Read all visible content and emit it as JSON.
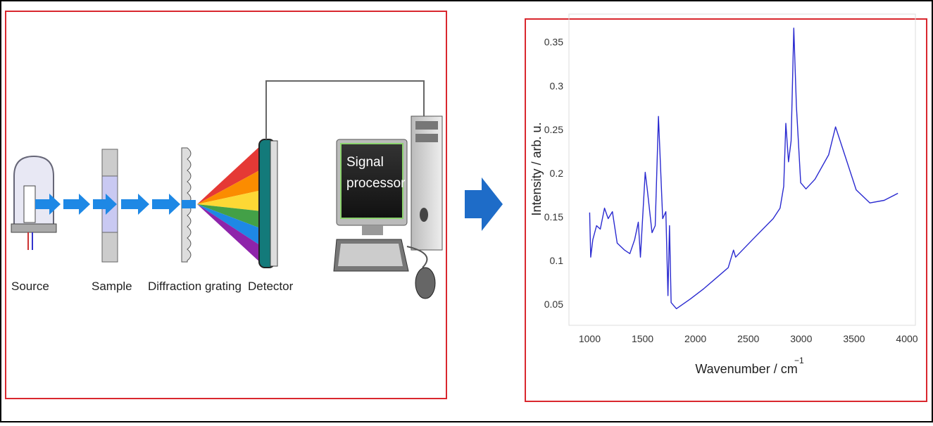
{
  "diagram": {
    "labels": [
      "Source",
      "Sample",
      "Diffraction grating",
      "Detector"
    ],
    "screen_text": [
      "Signal",
      "processor"
    ]
  },
  "chart_data": {
    "type": "line",
    "y_label": "Intensity / arb. u.",
    "x_label": "Wavenumber / cm",
    "x_label_exponent": "−1",
    "x": [
      1000,
      1010,
      1030,
      1065,
      1100,
      1140,
      1175,
      1215,
      1260,
      1330,
      1380,
      1425,
      1460,
      1480,
      1525,
      1545,
      1590,
      1620,
      1650,
      1690,
      1720,
      1740,
      1755,
      1770,
      1820,
      1950,
      2080,
      2310,
      2360,
      2380,
      2540,
      2735,
      2800,
      2835,
      2855,
      2880,
      2905,
      2930,
      2955,
      2995,
      3045,
      3130,
      3260,
      3325,
      3390,
      3520,
      3650,
      3785,
      3915
    ],
    "values": [
      0.155,
      0.104,
      0.124,
      0.14,
      0.136,
      0.16,
      0.148,
      0.156,
      0.12,
      0.112,
      0.108,
      0.124,
      0.144,
      0.104,
      0.201,
      0.181,
      0.132,
      0.14,
      0.265,
      0.148,
      0.156,
      0.06,
      0.14,
      0.052,
      0.045,
      0.056,
      0.068,
      0.092,
      0.112,
      0.104,
      0.124,
      0.148,
      0.16,
      0.185,
      0.257,
      0.213,
      0.237,
      0.366,
      0.277,
      0.189,
      0.182,
      0.193,
      0.221,
      0.253,
      0.229,
      0.181,
      0.166,
      0.169,
      0.177
    ],
    "color": "#2a2ad0",
    "xlim": [
      804,
      4080
    ],
    "ylim": [
      0.026,
      0.382
    ],
    "xticks": [
      1000,
      1500,
      2000,
      2500,
      3000,
      3500,
      4000
    ],
    "yticks": [
      0.05,
      0.1,
      0.15,
      0.2,
      0.25,
      0.3,
      0.35
    ],
    "grid": false
  }
}
